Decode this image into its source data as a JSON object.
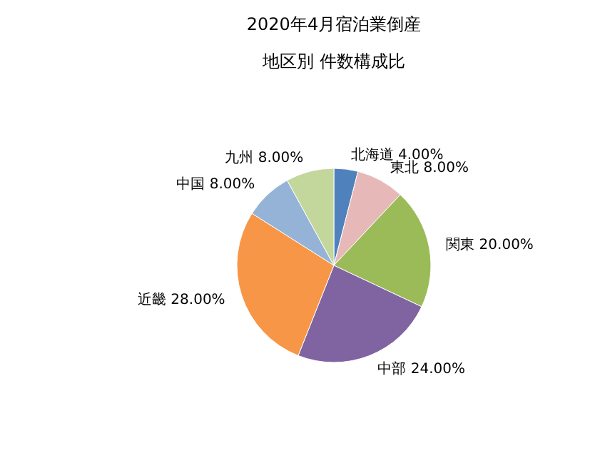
{
  "chart_data": {
    "type": "pie",
    "title": "2020年4月宿泊業倒産",
    "subtitle": "地区別 件数構成比",
    "categories": [
      "北海道",
      "東北",
      "関東",
      "中部",
      "近畿",
      "中国",
      "九州"
    ],
    "values": [
      4,
      8,
      20,
      24,
      28,
      8,
      8
    ],
    "value_labels": [
      "4.00%",
      "8.00%",
      "20.00%",
      "24.00%",
      "28.00%",
      "8.00%",
      "8.00%"
    ],
    "colors": [
      "#4f81bd",
      "#e6b9b8",
      "#9bbb59",
      "#8064a2",
      "#f79646",
      "#95b3d7",
      "#c3d69b"
    ],
    "legend": false
  }
}
